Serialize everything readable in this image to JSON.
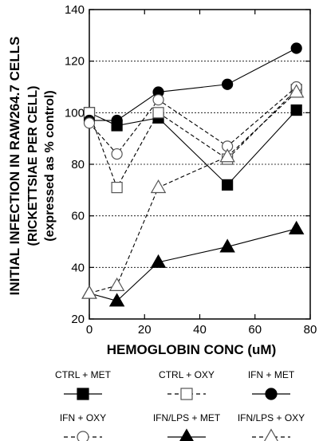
{
  "chart_data": {
    "type": "line",
    "xlabel": "HEMOGLOBIN CONC (uM)",
    "ylabel_lines": [
      "INITIAL INFECTION IN RAW264.7 CELLS",
      "(RICKETTSIAE PER CELL)",
      "(expressed as % control)"
    ],
    "xlim": [
      0,
      80
    ],
    "ylim": [
      20,
      140
    ],
    "xticks": [
      0,
      20,
      40,
      60,
      80
    ],
    "yticks": [
      20,
      40,
      60,
      80,
      100,
      120,
      140
    ],
    "grid": "horizontal-dotted",
    "legend_position": "bottom",
    "series": [
      {
        "name": "CTRL + MET",
        "marker": "square",
        "fill": "filled",
        "line": "solid",
        "x": [
          0,
          10,
          25,
          50,
          75
        ],
        "y": [
          100,
          95,
          98,
          72,
          101
        ]
      },
      {
        "name": "CTRL + OXY",
        "marker": "square",
        "fill": "open",
        "line": "dashed",
        "x": [
          0,
          10,
          25,
          50,
          75
        ],
        "y": [
          100,
          71,
          100,
          82,
          109
        ]
      },
      {
        "name": "IFN + MET",
        "marker": "circle",
        "fill": "filled",
        "line": "solid",
        "x": [
          0,
          10,
          25,
          50,
          75
        ],
        "y": [
          97,
          97,
          108,
          111,
          125
        ]
      },
      {
        "name": "IFN + OXY",
        "marker": "circle",
        "fill": "open",
        "line": "dashed",
        "x": [
          0,
          10,
          25,
          50,
          75
        ],
        "y": [
          96,
          84,
          105,
          87,
          110
        ]
      },
      {
        "name": "IFN/LPS + MET",
        "marker": "triangle",
        "fill": "filled",
        "line": "solid",
        "x": [
          0,
          10,
          25,
          50,
          75
        ],
        "y": [
          30,
          27,
          42,
          48,
          55
        ]
      },
      {
        "name": "IFN/LPS + OXY",
        "marker": "triangle",
        "fill": "open",
        "line": "dashed",
        "x": [
          0,
          10,
          25,
          50,
          75
        ],
        "y": [
          30,
          33,
          71,
          83,
          108
        ]
      }
    ]
  }
}
